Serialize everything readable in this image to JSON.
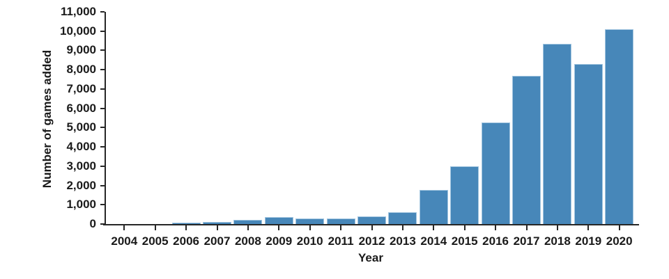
{
  "chart_data": {
    "type": "bar",
    "title": "",
    "xlabel": "Year",
    "ylabel": "Number of games added",
    "categories": [
      "2004",
      "2005",
      "2006",
      "2007",
      "2008",
      "2009",
      "2010",
      "2011",
      "2012",
      "2013",
      "2014",
      "2015",
      "2016",
      "2017",
      "2018",
      "2019",
      "2020"
    ],
    "values": [
      0,
      0,
      90,
      120,
      200,
      370,
      300,
      300,
      400,
      600,
      1750,
      3000,
      5250,
      7700,
      9350,
      8300,
      10100
    ],
    "ylim": [
      0,
      11000
    ],
    "ytick_step": 1000,
    "y_tick_labels": [
      "0",
      "1,000",
      "2,000",
      "3,000",
      "4,000",
      "5,000",
      "6,000",
      "7,000",
      "8,000",
      "9,000",
      "10,000",
      "11,000"
    ],
    "grid": false,
    "legend": "none",
    "colors": {
      "bar_fill": "#4787b9",
      "bar_edge": "#a3c6e0",
      "axis": "#262626",
      "text": "#1a1a1a",
      "background": "#ffffff"
    }
  }
}
